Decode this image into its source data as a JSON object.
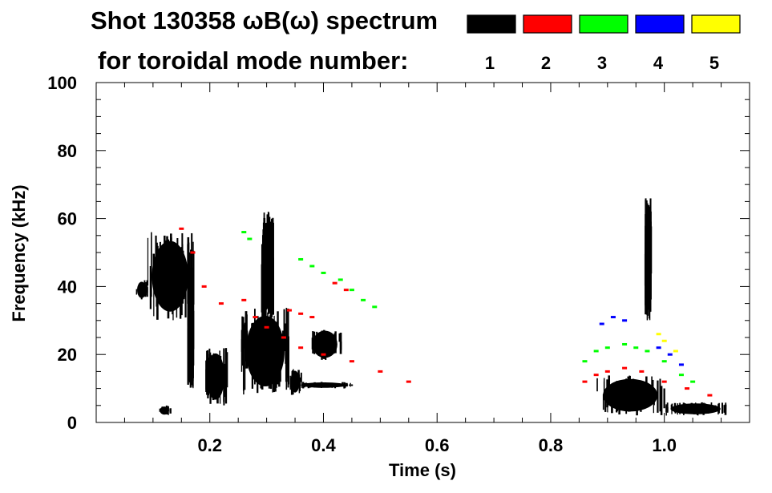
{
  "chart_data": {
    "type": "heatmap",
    "title": "Shot 130358 ωB(ω) spectrum",
    "subtitle": "for toroidal mode number:",
    "xlabel": "Time (s)",
    "ylabel": "Frequency (kHz)",
    "xlim": [
      0.0,
      1.15
    ],
    "ylim": [
      0,
      100
    ],
    "xticks": [
      "0.2",
      "0.4",
      "0.6",
      "0.8",
      "1.0"
    ],
    "yticks": [
      "0",
      "20",
      "40",
      "60",
      "80",
      "100"
    ],
    "grid": false,
    "legend_placement": "top-right",
    "legend": [
      {
        "name": "1",
        "color": "#000000"
      },
      {
        "name": "2",
        "color": "#ff0000"
      },
      {
        "name": "3",
        "color": "#00ff00"
      },
      {
        "name": "4",
        "color": "#0000ff"
      },
      {
        "name": "5",
        "color": "#ffff00"
      }
    ],
    "series": [
      {
        "name": "1",
        "color": "#000000",
        "blobs": [
          {
            "t": [
              0.07,
              0.09
            ],
            "f": [
              36,
              42
            ]
          },
          {
            "t": [
              0.09,
              0.17
            ],
            "f": [
              30,
              56
            ]
          },
          {
            "t": [
              0.11,
              0.13
            ],
            "f": [
              2,
              5
            ]
          },
          {
            "t": [
              0.16,
              0.17
            ],
            "f": [
              10,
              40
            ]
          },
          {
            "t": [
              0.19,
              0.23
            ],
            "f": [
              5,
              22
            ]
          },
          {
            "t": [
              0.255,
              0.34
            ],
            "f": [
              8,
              34
            ]
          },
          {
            "t": [
              0.29,
              0.31
            ],
            "f": [
              30,
              62
            ]
          },
          {
            "t": [
              0.34,
              0.36
            ],
            "f": [
              8,
              16
            ]
          },
          {
            "t": [
              0.375,
              0.43
            ],
            "f": [
              18,
              28
            ]
          },
          {
            "t": [
              0.35,
              0.45
            ],
            "f": [
              10,
              12
            ]
          },
          {
            "t": [
              0.88,
              1.0
            ],
            "f": [
              2,
              14
            ]
          },
          {
            "t": [
              1.0,
              1.11
            ],
            "f": [
              2,
              6
            ]
          },
          {
            "t": [
              0.965,
              0.975
            ],
            "f": [
              30,
              66
            ]
          }
        ]
      },
      {
        "name": "2",
        "color": "#ff0000",
        "points": [
          [
            0.15,
            57
          ],
          [
            0.17,
            50
          ],
          [
            0.19,
            40
          ],
          [
            0.22,
            35
          ],
          [
            0.26,
            36
          ],
          [
            0.28,
            31
          ],
          [
            0.3,
            28
          ],
          [
            0.33,
            25
          ],
          [
            0.36,
            22
          ],
          [
            0.4,
            20
          ],
          [
            0.45,
            18
          ],
          [
            0.5,
            15
          ],
          [
            0.55,
            12
          ],
          [
            0.34,
            33
          ],
          [
            0.36,
            32
          ],
          [
            0.38,
            31
          ],
          [
            0.42,
            41
          ],
          [
            0.44,
            39
          ],
          [
            0.86,
            12
          ],
          [
            0.88,
            14
          ],
          [
            0.9,
            15
          ],
          [
            0.93,
            16
          ],
          [
            0.96,
            15
          ],
          [
            1.0,
            12
          ],
          [
            1.04,
            10
          ],
          [
            1.08,
            8
          ]
        ]
      },
      {
        "name": "3",
        "color": "#00ff00",
        "points": [
          [
            0.26,
            56
          ],
          [
            0.27,
            54
          ],
          [
            0.36,
            48
          ],
          [
            0.38,
            46
          ],
          [
            0.4,
            44
          ],
          [
            0.43,
            42
          ],
          [
            0.45,
            39
          ],
          [
            0.47,
            36
          ],
          [
            0.49,
            34
          ],
          [
            0.86,
            18
          ],
          [
            0.88,
            21
          ],
          [
            0.9,
            22
          ],
          [
            0.93,
            23
          ],
          [
            0.95,
            22
          ],
          [
            0.97,
            21
          ],
          [
            1.0,
            18
          ],
          [
            1.03,
            14
          ],
          [
            1.05,
            12
          ]
        ]
      },
      {
        "name": "4",
        "color": "#0000ff",
        "points": [
          [
            0.89,
            29
          ],
          [
            0.91,
            31
          ],
          [
            0.93,
            30
          ],
          [
            0.99,
            22
          ],
          [
            1.01,
            20
          ],
          [
            1.03,
            17
          ]
        ]
      },
      {
        "name": "5",
        "color": "#ffff00",
        "points": [
          [
            0.99,
            26
          ],
          [
            1.0,
            24
          ],
          [
            1.02,
            21
          ]
        ]
      }
    ]
  }
}
